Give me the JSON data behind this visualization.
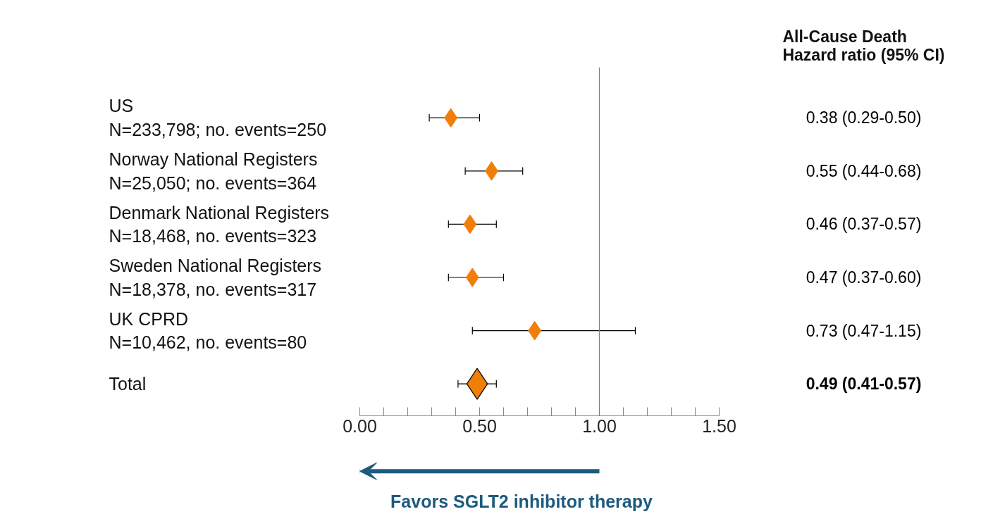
{
  "chart_data": {
    "type": "scatter",
    "orientation": "horizontal",
    "categories": [
      "US\nN=233,798; no. events=250",
      "Norway National Registers\nN=25,050; no. events=364",
      "Denmark National Registers\nN=18,468, no. events=323",
      "Sweden National Registers\nN=18,378, no. events=317",
      "UK CPRD\nN=10,462, no. events=80",
      "Total"
    ],
    "series": [
      {
        "color": "#f07f09",
        "values": [
          0.38,
          0.55,
          0.46,
          0.47,
          0.73,
          null
        ],
        "errors": [
          [
            0.29,
            0.5
          ],
          [
            0.44,
            0.68
          ],
          [
            0.37,
            0.57
          ],
          [
            0.37,
            0.6
          ],
          [
            0.47,
            1.15
          ],
          null
        ]
      },
      {
        "color": "#f07f09",
        "values": [
          null,
          null,
          null,
          null,
          null,
          0.49
        ],
        "errors": [
          null,
          null,
          null,
          null,
          null,
          [
            0.41,
            0.57
          ]
        ]
      }
    ],
    "value_labels": [
      "0.38 (0.29-0.50)",
      "0.55 (0.44-0.68)",
      "0.46 (0.37-0.57)",
      "0.47 (0.37-0.60)",
      "0.73 (0.47-1.15)",
      "0.49 (0.41-0.57)"
    ],
    "marker": "diamond",
    "xlim": [
      0,
      1.5
    ],
    "xticks": [
      {
        "value": 0,
        "label": "0.00"
      },
      {
        "value": 0.1,
        "label": null
      },
      {
        "value": 0.2,
        "label": null
      },
      {
        "value": 0.3,
        "label": null
      },
      {
        "value": 0.4,
        "label": null
      },
      {
        "value": 0.5,
        "label": "0.50"
      },
      {
        "value": 0.6,
        "label": null
      },
      {
        "value": 0.7,
        "label": null
      },
      {
        "value": 0.8,
        "label": null
      },
      {
        "value": 0.9,
        "label": null
      },
      {
        "value": 1.0,
        "label": "1.00"
      },
      {
        "value": 1.1,
        "label": null
      },
      {
        "value": 1.2,
        "label": null
      },
      {
        "value": 1.3,
        "label": null
      },
      {
        "value": 1.4,
        "label": null
      },
      {
        "value": 1.5,
        "label": "1.50"
      }
    ],
    "ref_lines": [
      {
        "axis": "x",
        "value": 1.0,
        "color": "#808080"
      }
    ],
    "legend_title": "All-Cause Death\nHazard ratio (95% CI)",
    "annotations": [
      "Favors SGLT2 inhibitor therapy"
    ],
    "grid": false,
    "tick_labels": "x"
  }
}
